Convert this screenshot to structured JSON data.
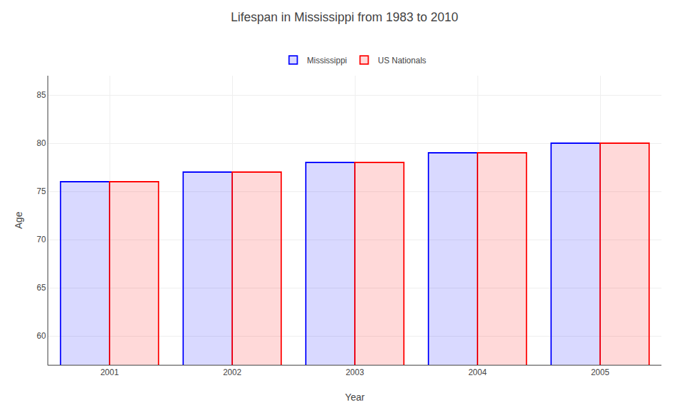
{
  "chart_data": {
    "type": "bar",
    "title": "Lifespan in Mississippi from 1983 to 2010",
    "xlabel": "Year",
    "ylabel": "Age",
    "categories": [
      "2001",
      "2002",
      "2003",
      "2004",
      "2005"
    ],
    "series": [
      {
        "name": "Mississippi",
        "color": "#0000ff",
        "values": [
          76,
          77,
          78,
          79,
          80
        ]
      },
      {
        "name": "US Nationals",
        "color": "#ff0000",
        "values": [
          76,
          77,
          78,
          79,
          80
        ]
      }
    ],
    "ylim": [
      57,
      87
    ],
    "yticks": [
      60,
      65,
      70,
      75,
      80,
      85
    ],
    "grid": true,
    "legend": "top"
  }
}
